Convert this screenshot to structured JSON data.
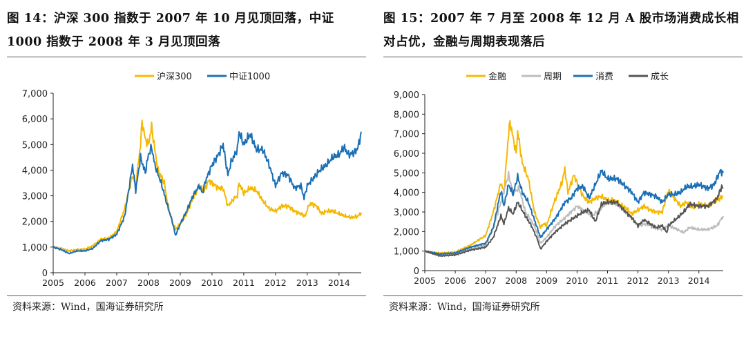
{
  "panels": [
    {
      "title": "图 14：沪深 300 指数于 2007 年 10 月见顶回落，中证 1000 指数于 2008 年 3 月见顶回落",
      "source": "资料来源：Wind，国海证券研究所"
    },
    {
      "title": "图 15：2007 年 7 月至 2008 年 12 月 A 股市场消费成长相对占优，金融与周期表现落后",
      "source": "资料来源：Wind，国海证券研究所"
    }
  ],
  "chart_data": [
    {
      "type": "line",
      "title": "",
      "xlabel": "",
      "ylabel": "",
      "xlim": [
        2005,
        2014.7
      ],
      "ylim": [
        0,
        7000
      ],
      "xticks": [
        "2005",
        "2006",
        "2007",
        "2008",
        "2009",
        "2010",
        "2011",
        "2012",
        "2013",
        "2014"
      ],
      "yticks": [
        "0",
        "1,000",
        "2,000",
        "3,000",
        "4,000",
        "5,000",
        "6,000",
        "7,000"
      ],
      "legend": "top",
      "grid": false,
      "series": [
        {
          "name": "沪深300",
          "color": "#F5B800",
          "x": [
            2005,
            2005.25,
            2005.5,
            2005.75,
            2006,
            2006.25,
            2006.5,
            2006.75,
            2007,
            2007.25,
            2007.5,
            2007.6,
            2007.75,
            2007.8,
            2007.9,
            2008,
            2008.1,
            2008.2,
            2008.3,
            2008.5,
            2008.6,
            2008.75,
            2008.85,
            2009,
            2009.2,
            2009.4,
            2009.6,
            2009.75,
            2009.9,
            2010,
            2010.2,
            2010.35,
            2010.5,
            2010.7,
            2010.8,
            2010.85,
            2011,
            2011.2,
            2011.4,
            2011.6,
            2011.8,
            2012,
            2012.2,
            2012.4,
            2012.6,
            2012.8,
            2012.95,
            2013,
            2013.1,
            2013.3,
            2013.45,
            2013.6,
            2013.8,
            2014,
            2014.2,
            2014.4,
            2014.6,
            2014.7
          ],
          "y": [
            1000,
            950,
            850,
            900,
            920,
            1050,
            1300,
            1350,
            1600,
            2500,
            3800,
            3400,
            5000,
            5900,
            5200,
            5000,
            5700,
            4800,
            4000,
            3500,
            2700,
            2000,
            1700,
            1900,
            2300,
            2900,
            3400,
            3200,
            3600,
            3500,
            3300,
            3300,
            2600,
            2900,
            3000,
            3500,
            3100,
            3300,
            3200,
            2800,
            2500,
            2400,
            2600,
            2600,
            2400,
            2300,
            2200,
            2500,
            2700,
            2600,
            2300,
            2400,
            2400,
            2300,
            2200,
            2150,
            2200,
            2350
          ]
        },
        {
          "name": "中证1000",
          "color": "#1A6FB5",
          "x": [
            2005,
            2005.25,
            2005.5,
            2005.75,
            2006,
            2006.25,
            2006.5,
            2006.75,
            2007,
            2007.25,
            2007.5,
            2007.6,
            2007.75,
            2007.9,
            2008,
            2008.1,
            2008.2,
            2008.4,
            2008.6,
            2008.75,
            2008.85,
            2009,
            2009.2,
            2009.4,
            2009.6,
            2009.7,
            2009.8,
            2010,
            2010.2,
            2010.35,
            2010.5,
            2010.6,
            2010.8,
            2010.85,
            2011,
            2011.2,
            2011.4,
            2011.6,
            2011.8,
            2012,
            2012.2,
            2012.4,
            2012.6,
            2012.8,
            2012.9,
            2013,
            2013.2,
            2013.4,
            2013.6,
            2013.8,
            2014,
            2014.15,
            2014.3,
            2014.5,
            2014.6,
            2014.7
          ],
          "y": [
            1000,
            900,
            750,
            850,
            850,
            950,
            1250,
            1300,
            1500,
            2200,
            4200,
            3200,
            4500,
            3900,
            4600,
            4900,
            4200,
            3500,
            2600,
            2000,
            1450,
            1900,
            2400,
            3000,
            3400,
            3100,
            3600,
            4200,
            4600,
            5000,
            3800,
            4300,
            4800,
            5500,
            5000,
            5400,
            4800,
            4800,
            4200,
            3400,
            3900,
            3800,
            3300,
            3400,
            2900,
            3400,
            3700,
            4000,
            4200,
            4500,
            4600,
            4900,
            4600,
            4700,
            4900,
            5500
          ]
        }
      ]
    },
    {
      "type": "line",
      "title": "",
      "xlabel": "",
      "ylabel": "",
      "xlim": [
        2005,
        2014.8
      ],
      "ylim": [
        0,
        9000
      ],
      "xticks": [
        "2005",
        "2006",
        "2007",
        "2008",
        "2009",
        "2010",
        "2011",
        "2012",
        "2013",
        "2014"
      ],
      "yticks": [
        "0",
        "1,000",
        "2,000",
        "3,000",
        "4,000",
        "5,000",
        "6,000",
        "7,000",
        "8,000",
        "9,000"
      ],
      "legend": "top",
      "grid": false,
      "series": [
        {
          "name": "金融",
          "color": "#F5B800",
          "x": [
            2005,
            2005.5,
            2006,
            2006.5,
            2007,
            2007.25,
            2007.5,
            2007.6,
            2007.75,
            2007.8,
            2007.9,
            2008,
            2008.05,
            2008.2,
            2008.4,
            2008.6,
            2008.8,
            2008.9,
            2009,
            2009.25,
            2009.5,
            2009.6,
            2009.7,
            2009.9,
            2010,
            2010.2,
            2010.4,
            2010.6,
            2010.8,
            2011,
            2011.2,
            2011.4,
            2011.6,
            2011.8,
            2012,
            2012.2,
            2012.4,
            2012.6,
            2012.8,
            2013,
            2013.2,
            2013.4,
            2013.6,
            2013.8,
            2014,
            2014.3,
            2014.6,
            2014.8
          ],
          "y": [
            1000,
            900,
            950,
            1300,
            1800,
            3000,
            4500,
            4000,
            7000,
            7600,
            6800,
            6000,
            7100,
            5500,
            4700,
            3000,
            2200,
            2400,
            2300,
            3500,
            4500,
            5200,
            4000,
            4900,
            4500,
            3800,
            3500,
            3700,
            3800,
            3600,
            3600,
            3400,
            3200,
            2900,
            3100,
            3300,
            3100,
            3000,
            3000,
            4100,
            3700,
            3300,
            3500,
            3200,
            3400,
            3300,
            3600,
            3800
          ]
        },
        {
          "name": "周期",
          "color": "#BDBDBD",
          "x": [
            2005,
            2005.5,
            2006,
            2006.5,
            2007,
            2007.25,
            2007.5,
            2007.75,
            2007.9,
            2008.1,
            2008.3,
            2008.6,
            2008.8,
            2009,
            2009.3,
            2009.6,
            2009.8,
            2010,
            2010.3,
            2010.5,
            2010.8,
            2011,
            2011.3,
            2011.6,
            2011.8,
            2012,
            2012.3,
            2012.5,
            2012.8,
            2013,
            2013.3,
            2013.5,
            2013.7,
            2014,
            2014.3,
            2014.6,
            2014.8
          ],
          "y": [
            1000,
            800,
            850,
            1100,
            1300,
            2200,
            3500,
            4900,
            4000,
            4200,
            3000,
            2300,
            1400,
            1700,
            2300,
            2700,
            3000,
            3300,
            3000,
            2800,
            3200,
            3500,
            3400,
            3000,
            2700,
            2300,
            2400,
            2200,
            2100,
            2300,
            2100,
            1950,
            2200,
            2100,
            2100,
            2300,
            2800
          ]
        },
        {
          "name": "消费",
          "color": "#1A6FB5",
          "x": [
            2005,
            2005.5,
            2006,
            2006.5,
            2007,
            2007.25,
            2007.5,
            2007.6,
            2007.75,
            2007.9,
            2008.05,
            2008.2,
            2008.4,
            2008.6,
            2008.8,
            2009,
            2009.3,
            2009.6,
            2009.8,
            2010,
            2010.2,
            2010.4,
            2010.6,
            2010.8,
            2011,
            2011.3,
            2011.6,
            2011.8,
            2012,
            2012.2,
            2012.4,
            2012.6,
            2012.8,
            2013,
            2013.2,
            2013.4,
            2013.6,
            2013.8,
            2014,
            2014.3,
            2014.5,
            2014.7,
            2014.8
          ],
          "y": [
            1000,
            850,
            900,
            1200,
            1400,
            2200,
            4100,
            3300,
            4400,
            3900,
            4800,
            4000,
            3500,
            2600,
            1700,
            2100,
            2700,
            3500,
            3700,
            4200,
            4300,
            3700,
            4400,
            5100,
            4700,
            4700,
            4300,
            4000,
            3500,
            4000,
            3900,
            3800,
            3500,
            3900,
            3900,
            4000,
            4300,
            4300,
            4400,
            4200,
            4400,
            5100,
            5000
          ]
        },
        {
          "name": "成长",
          "color": "#555555",
          "x": [
            2005,
            2005.5,
            2006,
            2006.5,
            2007,
            2007.25,
            2007.5,
            2007.6,
            2007.75,
            2007.9,
            2008.05,
            2008.3,
            2008.5,
            2008.7,
            2008.8,
            2009,
            2009.3,
            2009.6,
            2009.8,
            2010,
            2010.2,
            2010.4,
            2010.6,
            2010.8,
            2011,
            2011.3,
            2011.6,
            2011.8,
            2012,
            2012.2,
            2012.4,
            2012.6,
            2012.8,
            2012.95,
            2013,
            2013.3,
            2013.5,
            2013.7,
            2014,
            2014.3,
            2014.6,
            2014.75,
            2014.8
          ],
          "y": [
            1000,
            750,
            800,
            1050,
            1200,
            1700,
            2800,
            2400,
            3200,
            2900,
            3500,
            2800,
            2300,
            1600,
            1100,
            1500,
            2000,
            2400,
            2600,
            2800,
            3000,
            3100,
            2500,
            3400,
            3500,
            3500,
            3000,
            2700,
            2300,
            2600,
            2400,
            2200,
            2300,
            1950,
            2300,
            2700,
            3000,
            3400,
            3300,
            3300,
            3700,
            4300,
            4200
          ]
        }
      ]
    }
  ]
}
